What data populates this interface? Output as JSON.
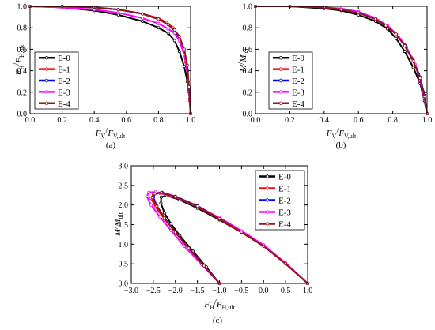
{
  "chart_data": [
    {
      "type": "line",
      "panel_label": "(a)",
      "xlabel": {
        "main": "F",
        "sub_main": "V",
        "slash": "/",
        "denom": "F",
        "sub_denom": "V,ult"
      },
      "ylabel": {
        "main": "F",
        "sub_main": "H",
        "slash": "/",
        "denom": "F",
        "sub_denom": "H,ult"
      },
      "xlim": [
        0.0,
        1.0
      ],
      "ylim": [
        0.0,
        1.0
      ],
      "x_ticks": [
        "0.0",
        "0.2",
        "0.4",
        "0.6",
        "0.8",
        "1.0"
      ],
      "y_ticks": [
        "0.0",
        "0.2",
        "0.4",
        "0.6",
        "0.8",
        "1.0"
      ],
      "legend_position": "bottom-left",
      "series": [
        {
          "name": "E-0",
          "color": "#000000",
          "x": [
            0.0,
            0.2,
            0.4,
            0.55,
            0.7,
            0.8,
            0.86,
            0.9,
            0.93,
            0.96,
            0.98,
            0.995,
            1.0
          ],
          "y": [
            1.0,
            0.99,
            0.96,
            0.92,
            0.86,
            0.8,
            0.75,
            0.68,
            0.58,
            0.44,
            0.3,
            0.14,
            0.0
          ]
        },
        {
          "name": "E-1",
          "color": "#ff0000",
          "x": [
            0.0,
            0.2,
            0.4,
            0.55,
            0.7,
            0.8,
            0.85,
            0.89,
            0.92,
            0.95,
            0.97,
            0.985,
            0.995,
            1.0
          ],
          "y": [
            1.0,
            1.0,
            0.99,
            0.97,
            0.93,
            0.89,
            0.85,
            0.8,
            0.73,
            0.62,
            0.48,
            0.3,
            0.12,
            0.0
          ]
        },
        {
          "name": "E-2",
          "color": "#0000ff",
          "x": [
            0.0,
            0.2,
            0.4,
            0.55,
            0.7,
            0.8,
            0.86,
            0.9,
            0.93,
            0.96,
            0.98,
            0.99,
            1.0
          ],
          "y": [
            1.0,
            1.0,
            0.99,
            0.97,
            0.93,
            0.88,
            0.83,
            0.77,
            0.7,
            0.57,
            0.4,
            0.22,
            0.0
          ]
        },
        {
          "name": "E-3",
          "color": "#ff00ff",
          "x": [
            0.0,
            0.2,
            0.4,
            0.55,
            0.7,
            0.8,
            0.86,
            0.9,
            0.93,
            0.96,
            0.98,
            0.99,
            1.0
          ],
          "y": [
            1.0,
            0.99,
            0.97,
            0.94,
            0.89,
            0.84,
            0.79,
            0.75,
            0.68,
            0.55,
            0.4,
            0.2,
            0.0
          ]
        },
        {
          "name": "E-4",
          "color": "#8b1a1a",
          "x": [
            0.0,
            0.2,
            0.4,
            0.55,
            0.7,
            0.8,
            0.86,
            0.9,
            0.93,
            0.96,
            0.98,
            0.99,
            1.0
          ],
          "y": [
            1.0,
            1.0,
            0.99,
            0.97,
            0.93,
            0.88,
            0.83,
            0.78,
            0.72,
            0.6,
            0.45,
            0.25,
            0.0
          ]
        }
      ]
    },
    {
      "type": "line",
      "panel_label": "(b)",
      "xlabel": {
        "main": "F",
        "sub_main": "V",
        "slash": "/",
        "denom": "F",
        "sub_denom": "V,ult"
      },
      "ylabel": {
        "main": "M",
        "sub_main": "",
        "slash": "/",
        "denom": "M",
        "sub_denom": "ult"
      },
      "xlim": [
        0.0,
        1.0
      ],
      "ylim": [
        0.0,
        1.0
      ],
      "x_ticks": [
        "0.0",
        "0.2",
        "0.4",
        "0.6",
        "0.8",
        "1.0"
      ],
      "y_ticks": [
        "0.0",
        "0.2",
        "0.4",
        "0.6",
        "0.8",
        "1.0"
      ],
      "legend_position": "bottom-left",
      "series": [
        {
          "name": "E-0",
          "color": "#000000",
          "x": [
            0.0,
            0.2,
            0.4,
            0.5,
            0.6,
            0.7,
            0.77,
            0.82,
            0.87,
            0.92,
            0.96,
            0.985,
            1.0
          ],
          "y": [
            1.0,
            1.0,
            0.98,
            0.96,
            0.92,
            0.86,
            0.79,
            0.7,
            0.58,
            0.43,
            0.28,
            0.12,
            0.0
          ]
        },
        {
          "name": "E-1",
          "color": "#ff0000",
          "x": [
            0.0,
            0.2,
            0.4,
            0.5,
            0.6,
            0.7,
            0.76,
            0.82,
            0.87,
            0.91,
            0.95,
            0.98,
            1.0
          ],
          "y": [
            1.0,
            1.0,
            0.99,
            0.97,
            0.94,
            0.88,
            0.82,
            0.74,
            0.64,
            0.52,
            0.37,
            0.2,
            0.0
          ]
        },
        {
          "name": "E-2",
          "color": "#0000ff",
          "x": [
            0.0,
            0.2,
            0.4,
            0.5,
            0.6,
            0.7,
            0.76,
            0.82,
            0.87,
            0.92,
            0.96,
            0.985,
            1.0
          ],
          "y": [
            1.0,
            1.0,
            0.99,
            0.97,
            0.94,
            0.88,
            0.82,
            0.74,
            0.64,
            0.5,
            0.34,
            0.17,
            0.0
          ]
        },
        {
          "name": "E-3",
          "color": "#ff00ff",
          "x": [
            0.0,
            0.2,
            0.4,
            0.5,
            0.6,
            0.7,
            0.77,
            0.83,
            0.88,
            0.93,
            0.96,
            0.985,
            1.0
          ],
          "y": [
            1.0,
            1.0,
            0.99,
            0.98,
            0.95,
            0.89,
            0.82,
            0.73,
            0.62,
            0.46,
            0.31,
            0.14,
            0.0
          ]
        },
        {
          "name": "E-4",
          "color": "#8b1a1a",
          "x": [
            0.0,
            0.2,
            0.4,
            0.5,
            0.6,
            0.7,
            0.76,
            0.82,
            0.87,
            0.92,
            0.96,
            0.985,
            1.0
          ],
          "y": [
            1.0,
            1.0,
            0.99,
            0.97,
            0.94,
            0.88,
            0.82,
            0.74,
            0.63,
            0.49,
            0.33,
            0.16,
            0.0
          ]
        }
      ]
    },
    {
      "type": "line",
      "panel_label": "(c)",
      "xlabel": {
        "main": "F",
        "sub_main": "H",
        "slash": "/",
        "denom": "F",
        "sub_denom": "H,ult"
      },
      "ylabel": {
        "main": "M",
        "sub_main": "",
        "slash": "/",
        "denom": "M",
        "sub_denom": "ult"
      },
      "xlim": [
        -3.0,
        1.0
      ],
      "ylim": [
        0.0,
        3.0
      ],
      "x_ticks": [
        "−3.0",
        "−2.5",
        "−2.0",
        "−1.5",
        "−1.0",
        "−0.5",
        "0.0",
        "0.5",
        "1.0"
      ],
      "y_ticks": [
        "0.0",
        "0.5",
        "1.0",
        "1.5",
        "2.0",
        "2.5",
        "3.0"
      ],
      "legend_position": "top-right",
      "series": [
        {
          "name": "E-0",
          "color": "#000000",
          "x": [
            -1.0,
            -1.3,
            -1.6,
            -1.9,
            -2.1,
            -2.25,
            -2.33,
            -2.32,
            -2.2,
            -1.9,
            -1.5,
            -1.0,
            -0.5,
            0.0,
            0.5,
            1.0
          ],
          "y": [
            0.0,
            0.42,
            0.82,
            1.22,
            1.52,
            1.8,
            2.05,
            2.2,
            2.24,
            2.13,
            1.92,
            1.62,
            1.3,
            0.95,
            0.52,
            0.0
          ]
        },
        {
          "name": "E-1",
          "color": "#ff0000",
          "x": [
            -1.0,
            -1.35,
            -1.7,
            -2.0,
            -2.25,
            -2.45,
            -2.55,
            -2.5,
            -2.35,
            -2.0,
            -1.5,
            -1.0,
            -0.5,
            0.0,
            0.5,
            1.0
          ],
          "y": [
            0.0,
            0.45,
            0.9,
            1.3,
            1.65,
            1.95,
            2.17,
            2.28,
            2.3,
            2.2,
            1.96,
            1.64,
            1.3,
            0.95,
            0.5,
            0.0
          ]
        },
        {
          "name": "E-2",
          "color": "#0000ff",
          "x": [
            -1.0,
            -1.35,
            -1.7,
            -2.0,
            -2.25,
            -2.42,
            -2.5,
            -2.45,
            -2.3,
            -2.0,
            -1.5,
            -1.0,
            -0.5,
            0.0,
            0.5,
            1.0
          ],
          "y": [
            0.0,
            0.45,
            0.9,
            1.3,
            1.68,
            1.98,
            2.2,
            2.3,
            2.32,
            2.22,
            1.98,
            1.66,
            1.32,
            0.96,
            0.51,
            0.0
          ]
        },
        {
          "name": "E-3",
          "color": "#ff00ff",
          "x": [
            -1.0,
            -1.4,
            -1.8,
            -2.1,
            -2.35,
            -2.55,
            -2.65,
            -2.6,
            -2.45,
            -2.1,
            -1.6,
            -1.0,
            -0.5,
            0.0,
            0.5,
            1.0
          ],
          "y": [
            0.0,
            0.48,
            0.95,
            1.35,
            1.7,
            2.0,
            2.22,
            2.32,
            2.33,
            2.24,
            2.02,
            1.68,
            1.34,
            0.98,
            0.52,
            0.0
          ]
        },
        {
          "name": "E-4",
          "color": "#8b1a1a",
          "x": [
            -1.0,
            -1.35,
            -1.7,
            -2.0,
            -2.25,
            -2.42,
            -2.52,
            -2.47,
            -2.32,
            -2.0,
            -1.5,
            -1.0,
            -0.5,
            0.0,
            0.5,
            1.0
          ],
          "y": [
            0.0,
            0.45,
            0.9,
            1.3,
            1.67,
            1.97,
            2.19,
            2.29,
            2.31,
            2.21,
            1.97,
            1.65,
            1.31,
            0.95,
            0.5,
            0.0
          ]
        }
      ]
    }
  ]
}
